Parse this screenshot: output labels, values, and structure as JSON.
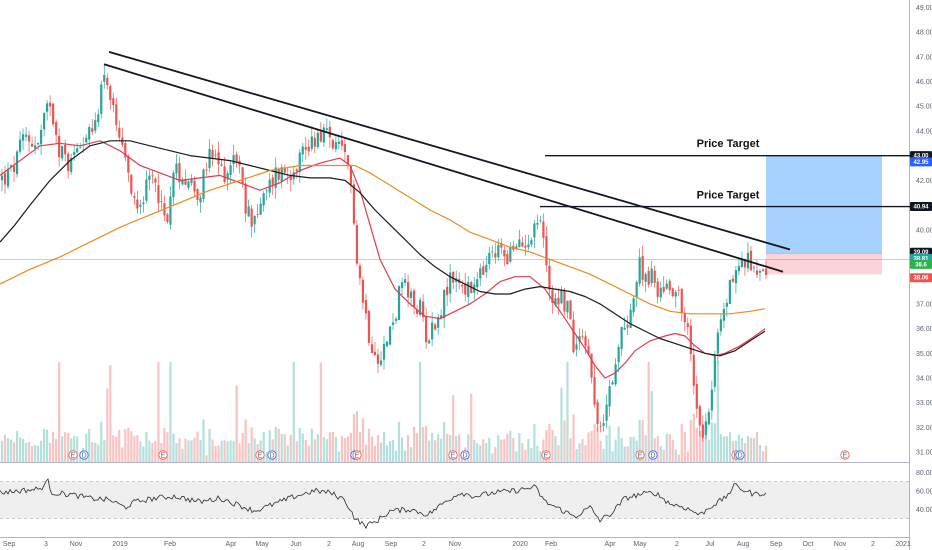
{
  "chart_data": {
    "type": "candlestick",
    "price_axis": {
      "ticks": [
        "49.00",
        "48.00",
        "47.00",
        "46.00",
        "45.00",
        "44.00",
        "43.00",
        "42.00",
        "41.00",
        "40.00",
        "39.00",
        "38.00",
        "37.00",
        "36.00",
        "35.00",
        "34.00",
        "33.00",
        "32.00",
        "31.00"
      ],
      "range": [
        30.6,
        49.3
      ]
    },
    "time_axis": {
      "labels": [
        "Sep",
        "3",
        "Nov",
        "2019",
        "Feb",
        "Apr",
        "May",
        "Jun",
        "2",
        "Aug",
        "Sep",
        "2",
        "Nov",
        "2020",
        "Feb",
        "Apr",
        "May",
        "2",
        "Jul",
        "Aug",
        "Sep",
        "Oct",
        "Nov",
        "2",
        "2021"
      ]
    },
    "price_path_anchors": [
      [
        0,
        42.0
      ],
      [
        12,
        42.3
      ],
      [
        25,
        43.8
      ],
      [
        38,
        43.4
      ],
      [
        50,
        45.3
      ],
      [
        60,
        43.2
      ],
      [
        70,
        42.6
      ],
      [
        80,
        43.8
      ],
      [
        92,
        43.7
      ],
      [
        105,
        46.6
      ],
      [
        115,
        44.2
      ],
      [
        125,
        42.6
      ],
      [
        135,
        41.2
      ],
      [
        145,
        41.5
      ],
      [
        155,
        42.2
      ],
      [
        165,
        40.2
      ],
      [
        175,
        42.4
      ],
      [
        185,
        42.2
      ],
      [
        200,
        41.5
      ],
      [
        210,
        43.0
      ],
      [
        225,
        42.3
      ],
      [
        237,
        43.1
      ],
      [
        245,
        40.8
      ],
      [
        252,
        40.5
      ],
      [
        262,
        41.0
      ],
      [
        275,
        42.3
      ],
      [
        290,
        42.4
      ],
      [
        305,
        43.3
      ],
      [
        320,
        44.0
      ],
      [
        330,
        43.7
      ],
      [
        345,
        42.8
      ],
      [
        352,
        41.6
      ],
      [
        358,
        38.5
      ],
      [
        363,
        37.2
      ],
      [
        370,
        35.6
      ],
      [
        378,
        35.0
      ],
      [
        386,
        35.3
      ],
      [
        395,
        36.6
      ],
      [
        402,
        37.9
      ],
      [
        410,
        37.1
      ],
      [
        420,
        36.8
      ],
      [
        428,
        35.6
      ],
      [
        440,
        36.8
      ],
      [
        452,
        38.1
      ],
      [
        462,
        37.8
      ],
      [
        470,
        37.4
      ],
      [
        478,
        37.9
      ],
      [
        490,
        38.8
      ],
      [
        500,
        39.2
      ],
      [
        510,
        39.0
      ],
      [
        522,
        39.4
      ],
      [
        532,
        40.0
      ],
      [
        540,
        40.5
      ],
      [
        546,
        38.7
      ],
      [
        552,
        37.2
      ],
      [
        560,
        37.4
      ],
      [
        568,
        36.8
      ],
      [
        575,
        35.0
      ],
      [
        582,
        36.2
      ],
      [
        590,
        34.6
      ],
      [
        597,
        32.7
      ],
      [
        602,
        31.2
      ],
      [
        608,
        34.0
      ],
      [
        614,
        33.9
      ],
      [
        622,
        35.9
      ],
      [
        630,
        36.7
      ],
      [
        640,
        38.5
      ],
      [
        650,
        38.1
      ],
      [
        660,
        37.5
      ],
      [
        668,
        37.9
      ],
      [
        678,
        37.5
      ],
      [
        688,
        35.8
      ],
      [
        695,
        33.3
      ],
      [
        702,
        31.9
      ],
      [
        710,
        33.0
      ],
      [
        716,
        35.4
      ],
      [
        724,
        36.7
      ],
      [
        730,
        37.8
      ],
      [
        736,
        38.4
      ],
      [
        745,
        38.7
      ],
      [
        752,
        38.6
      ],
      [
        760,
        38.5
      ],
      [
        766,
        38.5
      ]
    ],
    "moving_averages": [
      {
        "color": "#e03c50",
        "anchors": [
          [
            0,
            42.2
          ],
          [
            20,
            42.8
          ],
          [
            40,
            43.4
          ],
          [
            60,
            43.5
          ],
          [
            80,
            43.4
          ],
          [
            100,
            43.6
          ],
          [
            120,
            43.2
          ],
          [
            140,
            42.6
          ],
          [
            160,
            42.3
          ],
          [
            180,
            42.0
          ],
          [
            200,
            42.1
          ],
          [
            220,
            42.2
          ],
          [
            240,
            41.9
          ],
          [
            260,
            41.6
          ],
          [
            280,
            41.9
          ],
          [
            300,
            42.4
          ],
          [
            320,
            42.7
          ],
          [
            340,
            42.9
          ],
          [
            350,
            42.6
          ],
          [
            360,
            41.6
          ],
          [
            370,
            40.2
          ],
          [
            380,
            38.8
          ],
          [
            395,
            37.6
          ],
          [
            410,
            37.0
          ],
          [
            425,
            36.5
          ],
          [
            440,
            36.4
          ],
          [
            455,
            36.7
          ],
          [
            470,
            37.0
          ],
          [
            485,
            37.4
          ],
          [
            500,
            37.9
          ],
          [
            515,
            38.1
          ],
          [
            530,
            38.1
          ],
          [
            545,
            37.6
          ],
          [
            555,
            37.0
          ],
          [
            565,
            36.4
          ],
          [
            575,
            35.8
          ],
          [
            585,
            35.2
          ],
          [
            595,
            34.5
          ],
          [
            605,
            34.0
          ],
          [
            615,
            34.2
          ],
          [
            625,
            34.6
          ],
          [
            635,
            35.1
          ],
          [
            650,
            35.5
          ],
          [
            665,
            35.7
          ],
          [
            675,
            35.8
          ],
          [
            685,
            35.7
          ],
          [
            695,
            35.3
          ],
          [
            705,
            35.0
          ],
          [
            715,
            34.9
          ],
          [
            725,
            35.0
          ],
          [
            740,
            35.3
          ],
          [
            755,
            35.7
          ],
          [
            765,
            36.0
          ]
        ]
      },
      {
        "color": "#1b1b1b",
        "anchors": [
          [
            0,
            39.5
          ],
          [
            15,
            40.2
          ],
          [
            30,
            41.0
          ],
          [
            50,
            42.0
          ],
          [
            70,
            42.8
          ],
          [
            90,
            43.4
          ],
          [
            110,
            43.6
          ],
          [
            130,
            43.6
          ],
          [
            150,
            43.4
          ],
          [
            170,
            43.2
          ],
          [
            190,
            43.0
          ],
          [
            210,
            42.9
          ],
          [
            230,
            42.8
          ],
          [
            250,
            42.6
          ],
          [
            270,
            42.4
          ],
          [
            290,
            42.2
          ],
          [
            310,
            42.1
          ],
          [
            330,
            42.1
          ],
          [
            345,
            42.0
          ],
          [
            360,
            41.5
          ],
          [
            375,
            40.8
          ],
          [
            390,
            40.2
          ],
          [
            405,
            39.6
          ],
          [
            420,
            39.0
          ],
          [
            435,
            38.5
          ],
          [
            450,
            38.1
          ],
          [
            465,
            37.8
          ],
          [
            480,
            37.5
          ],
          [
            495,
            37.4
          ],
          [
            510,
            37.4
          ],
          [
            525,
            37.6
          ],
          [
            540,
            37.7
          ],
          [
            555,
            37.6
          ],
          [
            570,
            37.5
          ],
          [
            585,
            37.3
          ],
          [
            600,
            37.0
          ],
          [
            615,
            36.6
          ],
          [
            630,
            36.2
          ],
          [
            645,
            35.9
          ],
          [
            660,
            35.6
          ],
          [
            675,
            35.4
          ],
          [
            690,
            35.2
          ],
          [
            705,
            35.0
          ],
          [
            720,
            34.9
          ],
          [
            735,
            35.1
          ],
          [
            750,
            35.5
          ],
          [
            765,
            35.9
          ]
        ]
      },
      {
        "color": "#f0891f",
        "anchors": [
          [
            0,
            37.8
          ],
          [
            30,
            38.4
          ],
          [
            60,
            38.9
          ],
          [
            90,
            39.5
          ],
          [
            120,
            40.1
          ],
          [
            150,
            40.6
          ],
          [
            180,
            41.1
          ],
          [
            210,
            41.6
          ],
          [
            240,
            42.0
          ],
          [
            270,
            42.4
          ],
          [
            300,
            42.6
          ],
          [
            330,
            42.6
          ],
          [
            355,
            42.6
          ],
          [
            370,
            42.3
          ],
          [
            390,
            41.8
          ],
          [
            410,
            41.3
          ],
          [
            430,
            40.8
          ],
          [
            450,
            40.4
          ],
          [
            470,
            39.9
          ],
          [
            490,
            39.6
          ],
          [
            510,
            39.3
          ],
          [
            530,
            39.1
          ],
          [
            550,
            38.8
          ],
          [
            570,
            38.5
          ],
          [
            590,
            38.2
          ],
          [
            610,
            37.8
          ],
          [
            630,
            37.4
          ],
          [
            650,
            37.0
          ],
          [
            670,
            36.7
          ],
          [
            690,
            36.6
          ],
          [
            710,
            36.6
          ],
          [
            730,
            36.6
          ],
          [
            750,
            36.7
          ],
          [
            765,
            36.8
          ]
        ]
      }
    ],
    "trendlines": [
      {
        "from": [
          109,
          47.2
        ],
        "to": [
          790,
          39.2
        ]
      },
      {
        "from": [
          104,
          46.7
        ],
        "to": [
          783,
          38.3
        ]
      }
    ],
    "horizontal_lines": [
      {
        "x_start": 545,
        "x_end": 910,
        "price": 43.0
      },
      {
        "x_start": 540,
        "x_end": 910,
        "price": 40.94
      },
      {
        "x_start": 0,
        "x_end": 910,
        "price": 38.8
      }
    ],
    "annotations": [
      {
        "text": "Price Target",
        "x": 728,
        "price": 43.18
      },
      {
        "text": "Price Target",
        "x": 728,
        "price": 41.1
      }
    ],
    "position_tool": {
      "x_start": 766,
      "x_end": 882,
      "entry": 39.05,
      "target": 43.0,
      "stop": 38.2
    },
    "price_tags": [
      {
        "label": "43.00",
        "price": 43.0,
        "color": "#131722"
      },
      {
        "label": "42.95",
        "price": 42.75,
        "color": "#2962ff"
      },
      {
        "label": "40.94",
        "price": 40.94,
        "color": "#131722"
      },
      {
        "label": "39.09",
        "price": 39.09,
        "color": "#131722"
      },
      {
        "label": "38.81",
        "price": 38.84,
        "color": "#26a69a"
      },
      {
        "label": "38.6",
        "price": 38.6,
        "color": "#2bb34a"
      },
      {
        "label": "38.06",
        "price": 38.06,
        "color": "#ef5350"
      }
    ],
    "event_markers": [
      {
        "x": 73,
        "letter": "E"
      },
      {
        "x": 84,
        "letter": "D"
      },
      {
        "x": 163,
        "letter": "E"
      },
      {
        "x": 260,
        "letter": "E"
      },
      {
        "x": 272,
        "letter": "D"
      },
      {
        "x": 355,
        "letter": "D"
      },
      {
        "x": 357,
        "letter": "E"
      },
      {
        "x": 453,
        "letter": "E"
      },
      {
        "x": 465,
        "letter": "D"
      },
      {
        "x": 546,
        "letter": "E"
      },
      {
        "x": 640,
        "letter": "E"
      },
      {
        "x": 653,
        "letter": "D"
      },
      {
        "x": 736,
        "letter": "E"
      },
      {
        "x": 740,
        "letter": "D"
      },
      {
        "x": 845,
        "letter": "E"
      }
    ],
    "rsi": {
      "ticks": [
        "80.00",
        "60.00",
        "40.00"
      ],
      "band": [
        30,
        70
      ],
      "anchors": [
        [
          0,
          58
        ],
        [
          20,
          60
        ],
        [
          40,
          62
        ],
        [
          48,
          70
        ],
        [
          52,
          58
        ],
        [
          70,
          56
        ],
        [
          90,
          52
        ],
        [
          110,
          50
        ],
        [
          125,
          42
        ],
        [
          135,
          48
        ],
        [
          155,
          52
        ],
        [
          175,
          54
        ],
        [
          200,
          48
        ],
        [
          220,
          52
        ],
        [
          240,
          44
        ],
        [
          255,
          38
        ],
        [
          275,
          46
        ],
        [
          295,
          54
        ],
        [
          315,
          60
        ],
        [
          330,
          58
        ],
        [
          345,
          50
        ],
        [
          355,
          30
        ],
        [
          365,
          22
        ],
        [
          375,
          26
        ],
        [
          390,
          38
        ],
        [
          410,
          40
        ],
        [
          428,
          34
        ],
        [
          445,
          48
        ],
        [
          460,
          58
        ],
        [
          475,
          54
        ],
        [
          495,
          58
        ],
        [
          515,
          60
        ],
        [
          535,
          64
        ],
        [
          545,
          48
        ],
        [
          560,
          40
        ],
        [
          575,
          32
        ],
        [
          590,
          42
        ],
        [
          600,
          28
        ],
        [
          612,
          36
        ],
        [
          625,
          52
        ],
        [
          640,
          56
        ],
        [
          655,
          58
        ],
        [
          670,
          46
        ],
        [
          685,
          42
        ],
        [
          700,
          34
        ],
        [
          712,
          44
        ],
        [
          725,
          52
        ],
        [
          735,
          66
        ],
        [
          745,
          60
        ],
        [
          755,
          56
        ],
        [
          765,
          58
        ]
      ]
    }
  }
}
